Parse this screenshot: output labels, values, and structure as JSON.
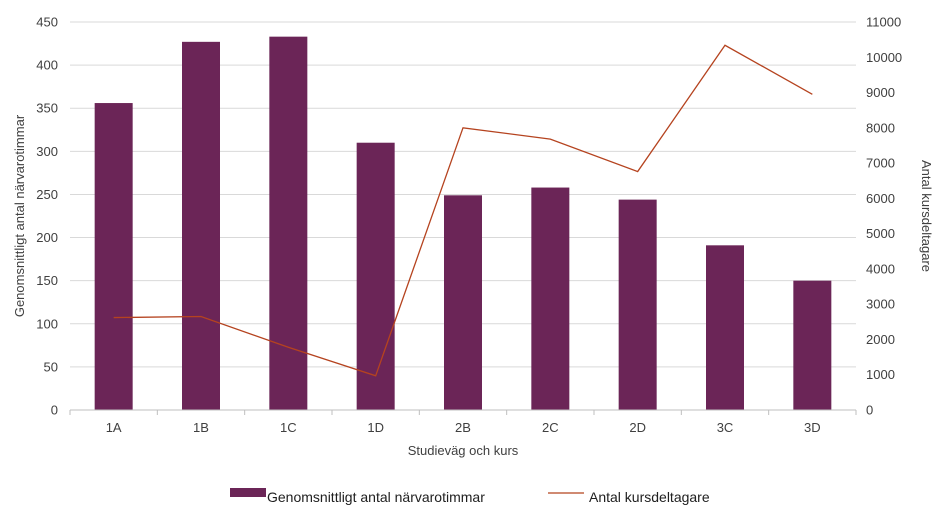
{
  "chart_data": {
    "type": "bar",
    "categories": [
      "1A",
      "1B",
      "1C",
      "1D",
      "2B",
      "2C",
      "2D",
      "3C",
      "3D"
    ],
    "series": [
      {
        "name": "Genomsnittligt antal närvarotimmar",
        "type": "bar",
        "axis": "left",
        "color": "#6b2557",
        "values": [
          356,
          427,
          433,
          310,
          249,
          258,
          244,
          191,
          150
        ]
      },
      {
        "name": "Antal kursdeltagare",
        "type": "line",
        "axis": "right",
        "color": "#b5431f",
        "values": [
          2620,
          2650,
          1780,
          970,
          8000,
          7680,
          6760,
          10340,
          8950
        ]
      }
    ],
    "xlabel": "Studieväg och kurs",
    "ylabel": "Genomsnittligt antal närvarotimmar",
    "y2label": "Antal kursdeltagare",
    "ylim": [
      0,
      450
    ],
    "yticks": [
      0,
      50,
      100,
      150,
      200,
      250,
      300,
      350,
      400,
      450
    ],
    "y2lim": [
      0,
      11000
    ],
    "y2ticks": [
      0,
      1000,
      2000,
      3000,
      4000,
      5000,
      6000,
      7000,
      8000,
      9000,
      10000,
      11000
    ],
    "grid": true,
    "legend": "bottom"
  }
}
